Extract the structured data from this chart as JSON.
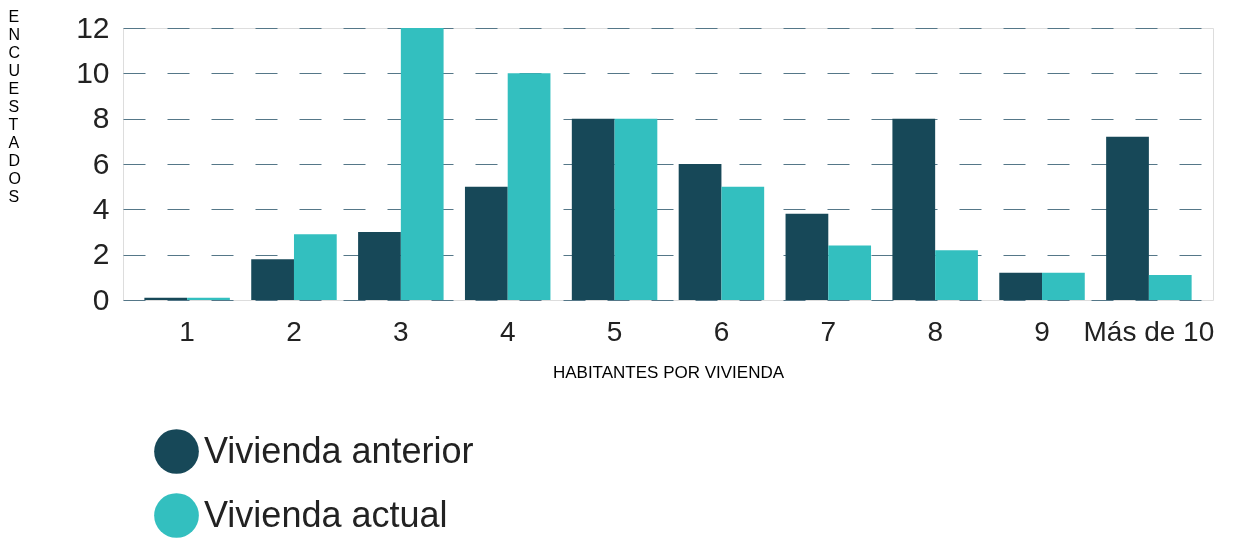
{
  "chart_data": {
    "type": "bar",
    "categories": [
      "1",
      "2",
      "3",
      "4",
      "5",
      "6",
      "7",
      "8",
      "9",
      "Más de 10"
    ],
    "series": [
      {
        "name": "Vivienda anterior",
        "color": "#174858",
        "values": [
          0.1,
          1.8,
          3,
          5,
          8,
          6,
          3.8,
          8,
          1.2,
          7.2
        ]
      },
      {
        "name": "Vivienda actual",
        "color": "#33bfbf",
        "values": [
          0.1,
          2.9,
          12,
          10,
          8,
          5,
          2.4,
          2.2,
          1.2,
          1.1
        ]
      }
    ],
    "xlabel": "HABITANTES POR VIVIENDA",
    "ylabel": "ENCUESTADOS",
    "ylim": [
      0,
      12
    ],
    "yticks": [
      0,
      2,
      4,
      6,
      8,
      10,
      12
    ],
    "grid": "y",
    "legend": "bottom left"
  }
}
